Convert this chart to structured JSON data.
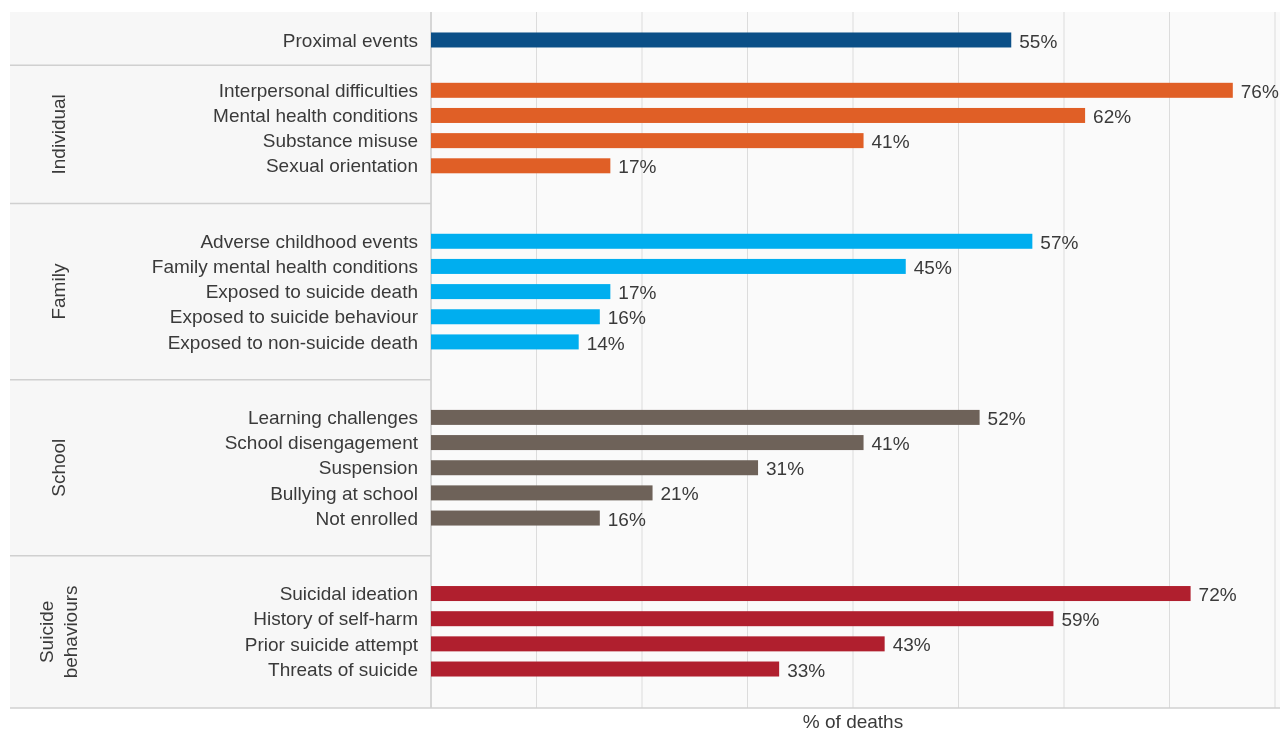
{
  "chart_data": {
    "type": "bar",
    "orientation": "horizontal",
    "categories": [
      "Proximal events",
      null,
      "Interpersonal difficulties",
      "Mental health conditions",
      "Substance misuse",
      "Sexual orientation",
      null,
      null,
      "Adverse childhood events",
      "Family mental health conditions",
      "Exposed to suicide death",
      "Exposed to suicide behaviour",
      "Exposed to non-suicide death",
      null,
      null,
      "Learning challenges",
      "School disengagement",
      "Suspension",
      "Bullying at school",
      "Not enrolled",
      null,
      null,
      "Suicidal ideation",
      "History of self-harm",
      "Prior suicide attempt",
      "Threats of suicide"
    ],
    "values": [
      55,
      null,
      76,
      62,
      41,
      17,
      null,
      null,
      57,
      45,
      17,
      16,
      14,
      null,
      null,
      52,
      41,
      31,
      21,
      16,
      null,
      null,
      72,
      59,
      43,
      33
    ],
    "value_labels": [
      "55%",
      null,
      "76%",
      "62%",
      "41%",
      "17%",
      null,
      null,
      "57%",
      "45%",
      "17%",
      "16%",
      "14%",
      null,
      null,
      "52%",
      "41%",
      "31%",
      "21%",
      "16%",
      null,
      null,
      "72%",
      "59%",
      "43%",
      "33%"
    ],
    "colors": [
      "#0b4f87",
      null,
      "#e05f26",
      "#e05f26",
      "#e05f26",
      "#e05f26",
      null,
      null,
      "#00aeef",
      "#00aeef",
      "#00aeef",
      "#00aeef",
      "#00aeef",
      null,
      null,
      "#6e6259",
      "#6e6259",
      "#6e6259",
      "#6e6259",
      "#6e6259",
      null,
      null,
      "#b01f2e",
      "#b01f2e",
      "#b01f2e",
      "#b01f2e"
    ],
    "xlim": [
      0,
      80
    ],
    "xticks": [
      {
        "value": 0,
        "label": null
      },
      {
        "value": 10,
        "label": null
      },
      {
        "value": 20,
        "label": null
      },
      {
        "value": 30,
        "label": null
      },
      {
        "value": 40,
        "label": null
      },
      {
        "value": 50,
        "label": null
      },
      {
        "value": 60,
        "label": null
      },
      {
        "value": 70,
        "label": null
      },
      {
        "value": 80,
        "label": null
      }
    ],
    "xlabel": "% of deaths",
    "annotations": [
      "Individual",
      "Family",
      "School",
      "Suicide behaviours"
    ],
    "grid": "x",
    "tick_labels": "y"
  }
}
